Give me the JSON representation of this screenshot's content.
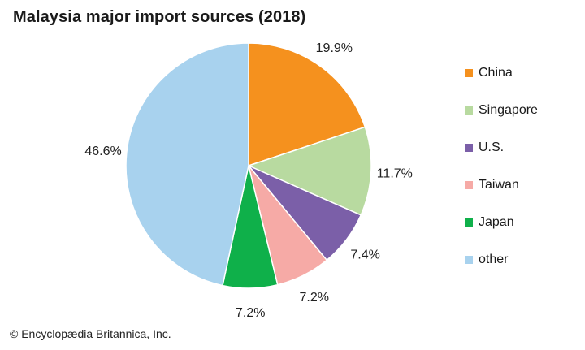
{
  "title": "Malaysia major import sources (2018)",
  "footer": "© Encyclopædia Britannica, Inc.",
  "chart_data": {
    "type": "pie",
    "title": "Malaysia major import sources (2018)",
    "start_angle_deg": 0,
    "direction": "clockwise",
    "legend_position": "right",
    "slices": [
      {
        "label": "China",
        "value": 19.9,
        "display": "19.9%",
        "color": "#f5911e"
      },
      {
        "label": "Singapore",
        "value": 11.7,
        "display": "11.7%",
        "color": "#b8daa0"
      },
      {
        "label": "U.S.",
        "value": 7.4,
        "display": "7.4%",
        "color": "#7b5fa8"
      },
      {
        "label": "Taiwan",
        "value": 7.2,
        "display": "7.2%",
        "color": "#f6aaa6"
      },
      {
        "label": "Japan",
        "value": 7.2,
        "display": "7.2%",
        "color": "#0fb04a"
      },
      {
        "label": "other",
        "value": 46.6,
        "display": "46.6%",
        "color": "#a8d2ee"
      }
    ]
  }
}
